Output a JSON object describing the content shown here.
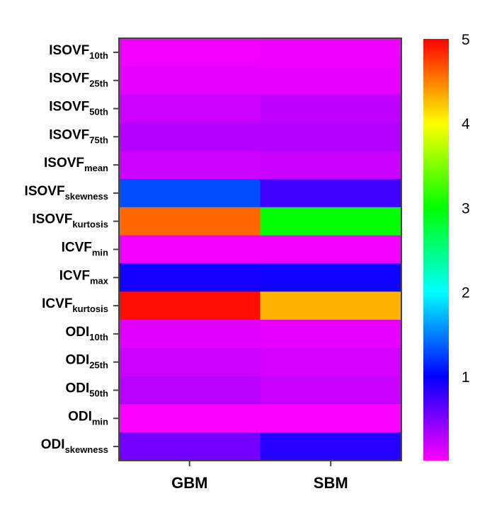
{
  "chart_data": {
    "type": "heatmap",
    "title": "",
    "xlabel": "",
    "ylabel": "",
    "columns": [
      "GBM",
      "SBM"
    ],
    "rows": [
      {
        "base": "ISOVF",
        "sub": "10th"
      },
      {
        "base": "ISOVF",
        "sub": "25th"
      },
      {
        "base": "ISOVF",
        "sub": "50th"
      },
      {
        "base": "ISOVF",
        "sub": "75th"
      },
      {
        "base": "ISOVF",
        "sub": "mean"
      },
      {
        "base": "ISOVF",
        "sub": "skewness"
      },
      {
        "base": "ISOVF",
        "sub": "kurtosis"
      },
      {
        "base": "ICVF",
        "sub": "min"
      },
      {
        "base": "ICVF",
        "sub": "max"
      },
      {
        "base": "ICVF",
        "sub": "kurtosis"
      },
      {
        "base": "ODI",
        "sub": "10th"
      },
      {
        "base": "ODI",
        "sub": "25th"
      },
      {
        "base": "ODI",
        "sub": "50th"
      },
      {
        "base": "ODI",
        "sub": "min"
      },
      {
        "base": "ODI",
        "sub": "skewness"
      }
    ],
    "values": [
      [
        0.05,
        0.07
      ],
      [
        0.1,
        0.1
      ],
      [
        0.2,
        0.25
      ],
      [
        0.3,
        0.3
      ],
      [
        0.2,
        0.22
      ],
      [
        1.3,
        0.75
      ],
      [
        4.6,
        3.0
      ],
      [
        0.05,
        0.05
      ],
      [
        0.92,
        0.95
      ],
      [
        4.95,
        4.3
      ],
      [
        0.12,
        0.1
      ],
      [
        0.2,
        0.17
      ],
      [
        0.28,
        0.22
      ],
      [
        0.02,
        0.02
      ],
      [
        0.55,
        0.85
      ]
    ],
    "colorbar": {
      "min": 0,
      "max": 5,
      "ticks": [
        1,
        2,
        3,
        4,
        5
      ],
      "colors": [
        "#ff00ff",
        "#0000ff",
        "#00ffff",
        "#00ff00",
        "#ffff00",
        "#ff0000"
      ]
    },
    "grid": false
  }
}
